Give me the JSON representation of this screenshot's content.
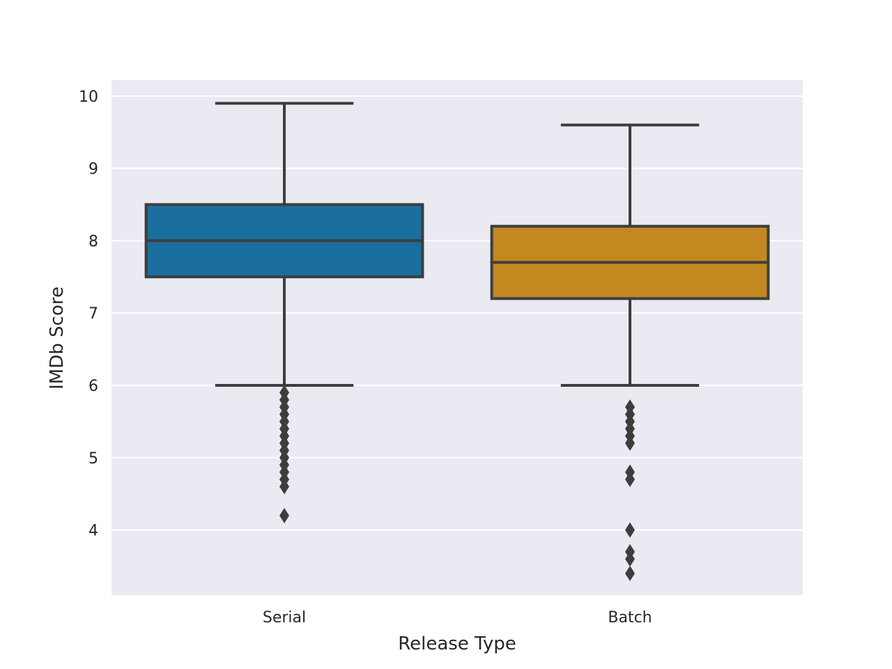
{
  "chart_data": {
    "type": "box",
    "xlabel": "Release Type",
    "ylabel": "IMDb Score",
    "ylim": [
      3.1,
      10.22
    ],
    "yticks": [
      4,
      5,
      6,
      7,
      8,
      9,
      10
    ],
    "grid": true,
    "categories": [
      "Serial",
      "Batch"
    ],
    "boxes": [
      {
        "name": "Serial",
        "color": "#1a6e9e",
        "whisker_low": 6.0,
        "q1": 7.5,
        "median": 8.0,
        "q3": 8.5,
        "whisker_high": 9.9,
        "outliers": [
          5.9,
          5.8,
          5.7,
          5.6,
          5.5,
          5.4,
          5.3,
          5.2,
          5.1,
          5.0,
          4.9,
          4.8,
          4.7,
          4.6,
          4.2
        ]
      },
      {
        "name": "Batch",
        "color": "#c38820",
        "whisker_low": 6.0,
        "q1": 7.2,
        "median": 7.7,
        "q3": 8.2,
        "whisker_high": 9.6,
        "outliers": [
          5.7,
          5.6,
          5.5,
          5.4,
          5.3,
          5.2,
          4.8,
          4.7,
          4.0,
          3.7,
          3.6,
          3.4
        ]
      }
    ]
  }
}
